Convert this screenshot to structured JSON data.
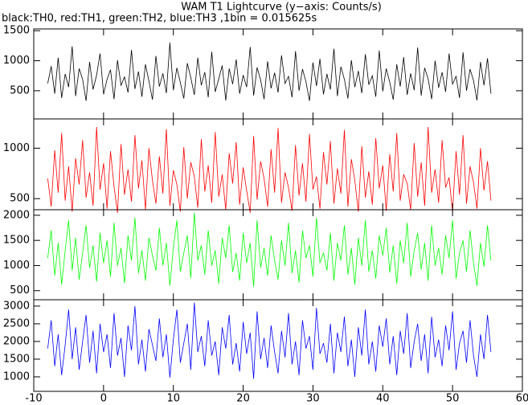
{
  "chart_data": {
    "type": "line",
    "title": "WAM T1 Lightcurve (y−axis: Counts/s)",
    "subtitle": "black:TH0, red:TH1, green:TH2, blue:TH3 ,1bin = 0.015625s",
    "xlim": [
      -10,
      60
    ],
    "xticks": [
      -10,
      0,
      10,
      20,
      30,
      40,
      50,
      60
    ],
    "x": [
      -8,
      -7.5,
      -7,
      -6.5,
      -6,
      -5.5,
      -5,
      -4.5,
      -4,
      -3.5,
      -3,
      -2.5,
      -2,
      -1.5,
      -1,
      -0.5,
      0,
      0.5,
      1,
      1.5,
      2,
      2.5,
      3,
      3.5,
      4,
      4.5,
      5,
      5.5,
      6,
      6.5,
      7,
      7.5,
      8,
      8.5,
      9,
      9.5,
      10,
      10.5,
      11,
      11.5,
      12,
      12.5,
      13,
      13.5,
      14,
      14.5,
      15,
      15.5,
      16,
      16.5,
      17,
      17.5,
      18,
      18.5,
      19,
      19.5,
      20,
      20.5,
      21,
      21.5,
      22,
      22.5,
      23,
      23.5,
      24,
      24.5,
      25,
      25.5,
      26,
      26.5,
      27,
      27.5,
      28,
      28.5,
      29,
      29.5,
      30,
      30.5,
      31,
      31.5,
      32,
      32.5,
      33,
      33.5,
      34,
      34.5,
      35,
      35.5,
      36,
      36.5,
      37,
      37.5,
      38,
      38.5,
      39,
      39.5,
      40,
      40.5,
      41,
      41.5,
      42,
      42.5,
      43,
      43.5,
      44,
      44.5,
      45,
      45.5,
      46,
      46.5,
      47,
      47.5,
      48,
      48.5,
      49,
      49.5,
      50,
      50.5,
      51,
      51.5,
      52,
      52.5,
      53,
      53.5,
      54,
      54.5,
      55,
      55.5
    ],
    "series": [
      {
        "color": "#000000",
        "ylim": [
          30,
          1530
        ],
        "yticks": [
          500,
          1000,
          1500
        ],
        "values": [
          620,
          910,
          450,
          1050,
          380,
          780,
          560,
          1240,
          410,
          870,
          690,
          330,
          980,
          520,
          760,
          1120,
          440,
          690,
          850,
          360,
          1010,
          590,
          730,
          470,
          1180,
          530,
          820,
          400,
          940,
          660,
          350,
          1080,
          570,
          790,
          460,
          1300,
          510,
          880,
          640,
          370,
          960,
          720,
          430,
          1050,
          590,
          810,
          390,
          1150,
          480,
          700,
          920,
          340,
          870,
          610,
          1020,
          450,
          760,
          560,
          1230,
          420,
          890,
          680,
          360,
          990,
          540,
          800,
          470,
          1090,
          620,
          740,
          390,
          1160,
          500,
          860,
          650,
          330,
          970,
          580,
          1030,
          440,
          780,
          520,
          1200,
          410,
          900,
          690,
          370,
          1010,
          560,
          830,
          460,
          1110,
          600,
          750,
          400,
          1170,
          490,
          870,
          640,
          350,
          940,
          570,
          1060,
          430,
          790,
          510,
          1220,
          420,
          880,
          700,
          360,
          1000,
          550,
          810,
          480,
          1120,
          610,
          740,
          380,
          1140,
          500,
          860,
          670,
          340,
          980,
          590,
          1040,
          450
        ]
      },
      {
        "color": "#ff0000",
        "ylim": [
          390,
          1290
        ],
        "yticks": [
          500,
          1000
        ],
        "values": [
          700,
          420,
          980,
          560,
          1150,
          480,
          820,
          370,
          900,
          640,
          1080,
          510,
          760,
          430,
          1210,
          590,
          850,
          400,
          970,
          620,
          360,
          1040,
          540,
          790,
          470,
          1130,
          600,
          880,
          390,
          1000,
          680,
          450,
          920,
          550,
          1190,
          430,
          780,
          640,
          370,
          1010,
          500,
          860,
          720,
          410,
          1090,
          570,
          830,
          460,
          1160,
          520,
          740,
          390,
          950,
          650,
          1060,
          440,
          810,
          580,
          360,
          1120,
          490,
          870,
          700,
          420,
          990,
          560,
          1200,
          460,
          760,
          610,
          380,
          1030,
          530,
          850,
          470,
          1140,
          590,
          720,
          400,
          960,
          640,
          1070,
          450,
          800,
          550,
          1180,
          420,
          890,
          680,
          370,
          1020,
          510,
          770,
          440,
          1100,
          600,
          830,
          380,
          940,
          570,
          1150,
          480,
          740,
          650,
          390,
          1050,
          520,
          860,
          430,
          1210,
          560,
          790,
          460,
          1080,
          610,
          710,
          370,
          970,
          540,
          1130,
          450,
          820,
          660,
          400,
          1000,
          580,
          870,
          480
        ]
      },
      {
        "color": "#00ff00",
        "ylim": [
          320,
          2110
        ],
        "yticks": [
          500,
          1000,
          1500,
          2000
        ],
        "values": [
          1150,
          1700,
          800,
          1450,
          620,
          1300,
          1900,
          900,
          1550,
          720,
          1250,
          1800,
          950,
          1400,
          680,
          1650,
          1050,
          1500,
          780,
          1850,
          1000,
          1350,
          650,
          1600,
          1100,
          1950,
          850,
          1300,
          700,
          1550,
          1200,
          900,
          1750,
          1000,
          1450,
          600,
          1350,
          1900,
          880,
          1250,
          1600,
          750,
          2050,
          1100,
          1400,
          820,
          1700,
          1000,
          1300,
          640,
          1550,
          1150,
          1800,
          870,
          1250,
          700,
          1650,
          1050,
          1450,
          580,
          1900,
          960,
          1350,
          800,
          1600,
          1100,
          720,
          1500,
          1000,
          1850,
          850,
          1300,
          660,
          1700,
          1150,
          1400,
          780,
          1950,
          1050,
          1250,
          900,
          1650,
          700,
          1450,
          1100,
          1800,
          820,
          1350,
          620,
          1550,
          1000,
          1900,
          880,
          1300,
          740,
          1600,
          1200,
          1750,
          860,
          1400,
          640,
          1500,
          1050,
          1850,
          780,
          1300,
          1650,
          920,
          1450,
          700,
          1800,
          1000,
          1350,
          820,
          1600,
          1150,
          1900,
          740,
          1250,
          1500,
          880,
          1700,
          1050,
          600,
          1450,
          980,
          1800,
          1100
        ]
      },
      {
        "color": "#0000ff",
        "ylim": [
          590,
          3180
        ],
        "yticks": [
          1000,
          1500,
          2000,
          2500,
          3000
        ],
        "values": [
          1800,
          2600,
          1300,
          2200,
          1050,
          1900,
          2900,
          1500,
          2400,
          1200,
          2000,
          2750,
          1400,
          2300,
          1100,
          2500,
          1700,
          2200,
          1250,
          2800,
          1600,
          2100,
          1000,
          2450,
          1750,
          3000,
          1350,
          2050,
          1150,
          2350,
          1900,
          1450,
          2650,
          1550,
          2200,
          980,
          2050,
          2900,
          1400,
          1950,
          2500,
          1200,
          3100,
          1700,
          2150,
          1300,
          2600,
          1600,
          2000,
          1050,
          2400,
          1800,
          2750,
          1350,
          1950,
          1150,
          2550,
          1650,
          2250,
          950,
          2850,
          1500,
          2100,
          1250,
          2450,
          1700,
          1100,
          2300,
          1550,
          2800,
          1350,
          2000,
          1050,
          2600,
          1800,
          2150,
          1200,
          2950,
          1650,
          1950,
          1400,
          2500,
          1100,
          2250,
          1700,
          2700,
          1300,
          2050,
          1000,
          2400,
          1600,
          2900,
          1350,
          2000,
          1150,
          2450,
          1850,
          2650,
          1350,
          2150,
          1050,
          2300,
          1650,
          2800,
          1250,
          2000,
          2500,
          1450,
          2200,
          1100,
          2700,
          1550,
          2050,
          1300,
          2450,
          1750,
          2850,
          1200,
          1950,
          2300,
          1400,
          2600,
          1600,
          1000,
          2200,
          1500,
          2750,
          1700
        ]
      }
    ]
  }
}
